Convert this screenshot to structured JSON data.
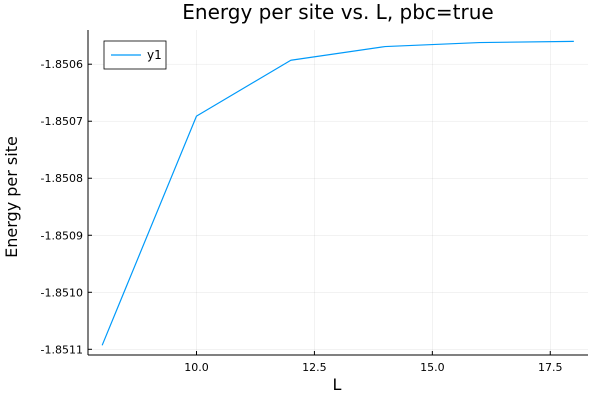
{
  "chart_data": {
    "type": "line",
    "title": "Energy per site vs. L, pbc=true",
    "xlabel": "L",
    "ylabel": "Energy per site",
    "xlim": [
      7.7,
      18.3
    ],
    "ylim": [
      -1.85111,
      -1.85054
    ],
    "x_ticks": [
      10.0,
      12.5,
      15.0,
      17.5
    ],
    "x_tick_labels": [
      "10.0",
      "12.5",
      "15.0",
      "17.5"
    ],
    "y_ticks": [
      -1.8511,
      -1.851,
      -1.8509,
      -1.8508,
      -1.8507,
      -1.8506
    ],
    "y_tick_labels": [
      "-1.8511",
      "-1.8510",
      "-1.8509",
      "-1.8508",
      "-1.8507",
      "-1.8506"
    ],
    "grid": true,
    "legend_position": "top-left",
    "series": [
      {
        "name": "y1",
        "color": "#009AFA",
        "x": [
          8,
          10,
          12,
          14,
          16,
          18
        ],
        "y": [
          -1.851093,
          -1.850691,
          -1.850593,
          -1.850569,
          -1.850562,
          -1.85056
        ]
      }
    ]
  }
}
